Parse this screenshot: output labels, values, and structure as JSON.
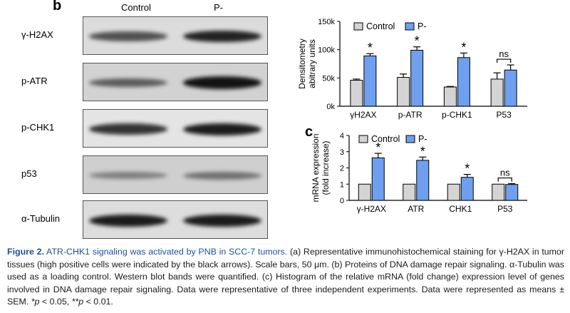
{
  "panel_b": {
    "letter": "b",
    "columns": [
      "Control",
      "P-"
    ],
    "blots": [
      {
        "label": "γ-H2AX",
        "bg": "#dcdcdc",
        "band1": 0.55,
        "band2": 0.85
      },
      {
        "label": "p-ATR",
        "bg": "#d2d2d2",
        "band1": 0.45,
        "band2": 0.95
      },
      {
        "label": "p-CHK1",
        "bg": "#e4e4e4",
        "band1": 0.75,
        "band2": 0.9
      },
      {
        "label": "p53",
        "bg": "#cfcfcf",
        "band1": 0.2,
        "band2": 0.3
      },
      {
        "label": "α-Tubulin",
        "bg": "#dddddd",
        "band1": 0.9,
        "band2": 0.9
      }
    ]
  },
  "panel_c_letter": "c",
  "chart_data": [
    {
      "type": "bar",
      "ylabel": "Densitometry abitrary units",
      "categories": [
        "γH2AX",
        "p-ATR",
        "p-CHK1",
        "P53"
      ],
      "yticks": [
        "0k",
        "50k",
        "100k",
        "150k"
      ],
      "ylim": [
        0,
        150
      ],
      "legend": [
        "Control",
        "P-"
      ],
      "legend_placement": "top-left",
      "series": [
        {
          "name": "Control",
          "color": "#d4d4d4",
          "values": [
            46,
            51,
            34,
            48
          ],
          "errors": [
            2,
            6,
            1,
            11
          ]
        },
        {
          "name": "P-",
          "color": "#6fa0f0",
          "values": [
            89,
            99,
            86,
            64
          ],
          "errors": [
            4,
            6,
            8,
            9
          ]
        }
      ],
      "annotations": [
        "*",
        "*",
        "*",
        "ns"
      ]
    },
    {
      "type": "bar",
      "ylabel": "mRNA expression (fold increase)",
      "categories": [
        "γ-H2AX",
        "ATR",
        "CHK1",
        "P53"
      ],
      "yticks": [
        "0",
        "1",
        "2",
        "3",
        "4"
      ],
      "ylim": [
        0,
        4
      ],
      "legend": [
        "Control",
        "P-"
      ],
      "legend_placement": "top-left",
      "series": [
        {
          "name": "Control",
          "color": "#d4d4d4",
          "values": [
            1.0,
            1.0,
            1.0,
            1.0
          ],
          "errors": [
            0,
            0,
            0,
            0
          ]
        },
        {
          "name": "P-",
          "color": "#6fa0f0",
          "values": [
            2.62,
            2.47,
            1.42,
            0.98
          ],
          "errors": [
            0.28,
            0.2,
            0.18,
            0.05
          ]
        }
      ],
      "annotations": [
        "*",
        "*",
        "*",
        "ns"
      ]
    }
  ],
  "caption": {
    "fig": "Figure 2.",
    "title": "ATR-CHK1 signaling was activated by PNB in SCC-7 tumors.",
    "body_1": " (a) Representative immunohistochemical staining for γ-H2AX in tumor tissues (high positive cells were indicated by the black arrows). Scale bars, 50 μm. (b) Proteins of DNA damage repair signaling. α-Tubulin was used as a loading control. Western blot bands were quantified. (c) Histogram of the relative mRNA (fold change) expression level of genes involved in DNA damage repair signaling. Data were representative of three independent experiments. Data were represented as means ± SEM. ",
    "p1": "*p",
    "p1_val": " < 0.05, ",
    "p2": "**p",
    "p2_val": " < 0.01."
  }
}
